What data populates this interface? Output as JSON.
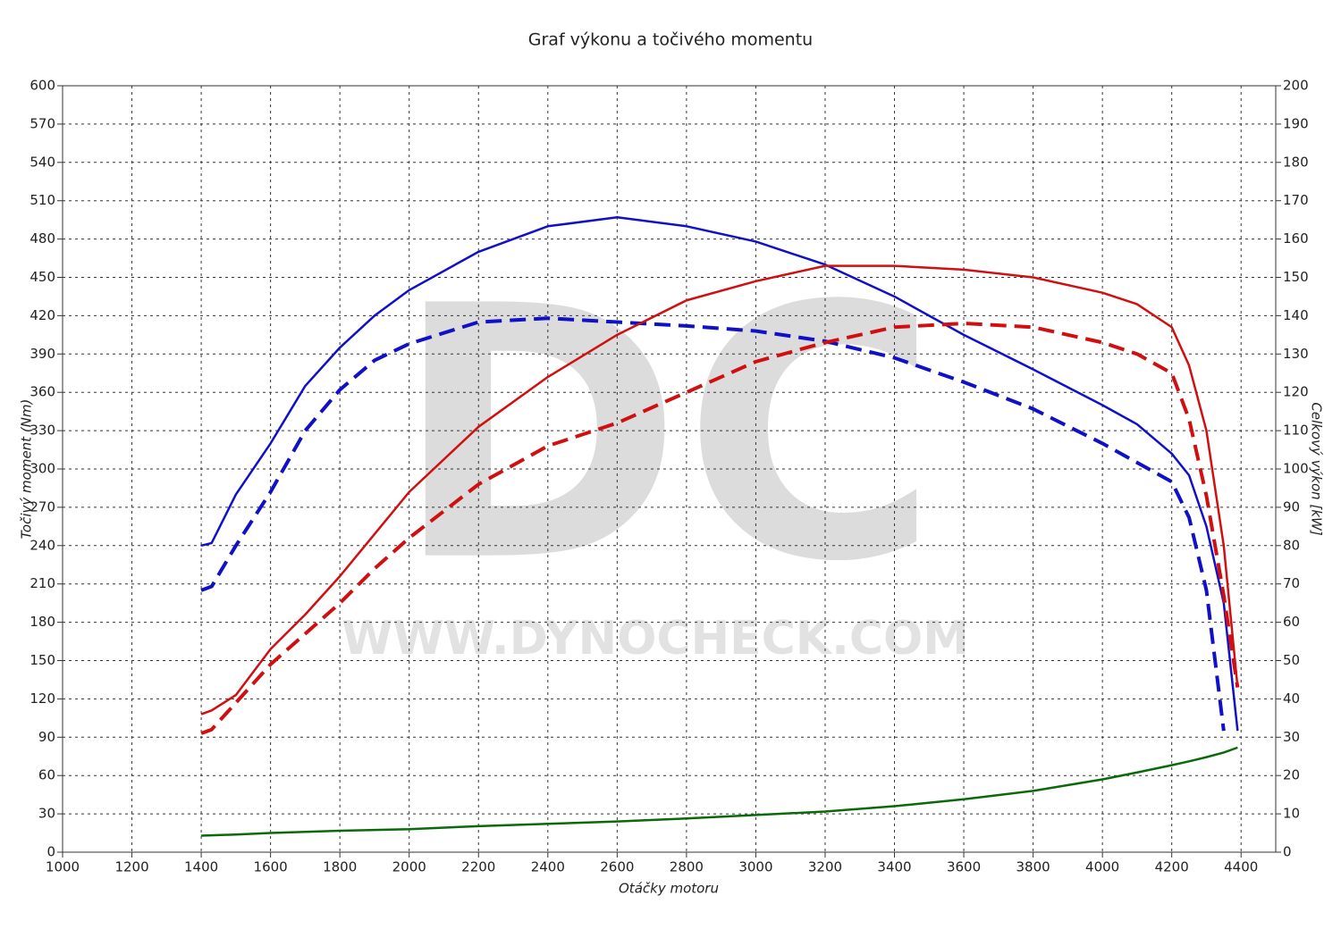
{
  "chart_data": {
    "type": "line",
    "title": "Graf výkonu a točivého momentu",
    "xlabel": "Otáčky motoru",
    "ylabel": "Točivý moment (Nm)",
    "y2label": "Celkový výkon [kW]",
    "watermark_logo": "DC",
    "watermark_url": "WWW.DYNOCHECK.COM",
    "grid": true,
    "xlim": [
      1000,
      4500
    ],
    "xticks": [
      1000,
      1200,
      1400,
      1600,
      1800,
      2000,
      2200,
      2400,
      2600,
      2800,
      3000,
      3200,
      3400,
      3600,
      3800,
      4000,
      4200,
      4400
    ],
    "ylim": [
      0,
      600
    ],
    "yticks": [
      0,
      30,
      60,
      90,
      120,
      150,
      180,
      210,
      240,
      270,
      300,
      330,
      360,
      390,
      420,
      450,
      480,
      510,
      540,
      570,
      600
    ],
    "y2lim": [
      0,
      200
    ],
    "y2ticks": [
      0,
      10,
      20,
      30,
      40,
      50,
      60,
      70,
      80,
      90,
      100,
      110,
      120,
      130,
      140,
      150,
      160,
      170,
      180,
      190,
      200
    ],
    "x": [
      1400,
      1430,
      1500,
      1600,
      1700,
      1800,
      1900,
      2000,
      2200,
      2400,
      2600,
      2800,
      3000,
      3200,
      3400,
      3600,
      3800,
      4000,
      4100,
      4200,
      4250,
      4300,
      4350,
      4390
    ],
    "series": [
      {
        "color": "#1010c8",
        "dashed": false,
        "axis": "y",
        "values": [
          240,
          242,
          280,
          320,
          365,
          395,
          420,
          440,
          470,
          490,
          497,
          490,
          478,
          460,
          435,
          405,
          378,
          350,
          335,
          312,
          295,
          255,
          195,
          95
        ]
      },
      {
        "color": "#1010c8",
        "dashed": true,
        "axis": "y",
        "values": [
          205,
          208,
          240,
          282,
          330,
          362,
          385,
          398,
          415,
          418,
          415,
          412,
          408,
          400,
          387,
          368,
          347,
          320,
          305,
          290,
          262,
          205,
          95,
          null
        ]
      },
      {
        "color": "#d01010",
        "dashed": false,
        "axis": "y2",
        "values": [
          36,
          37,
          41,
          53,
          62,
          72,
          83,
          94,
          111,
          124,
          135,
          144,
          149,
          153,
          153,
          152,
          150,
          146,
          143,
          137,
          127,
          110,
          80,
          43
        ]
      },
      {
        "color": "#d01010",
        "dashed": true,
        "axis": "y2",
        "values": [
          31,
          32,
          39,
          49,
          57,
          65,
          74,
          82,
          96,
          106,
          112,
          120,
          128,
          133,
          137,
          138,
          137,
          133,
          130,
          125,
          113,
          93,
          67,
          43
        ]
      },
      {
        "color": "#0a6a0a",
        "dashed": false,
        "axis": "y2",
        "values": [
          4.3,
          4.4,
          4.6,
          5,
          5.3,
          5.6,
          5.8,
          6,
          6.8,
          7.4,
          8,
          8.8,
          9.7,
          10.6,
          12,
          13.8,
          16,
          19,
          20.8,
          22.7,
          23.7,
          24.8,
          26,
          27.3
        ]
      }
    ]
  }
}
